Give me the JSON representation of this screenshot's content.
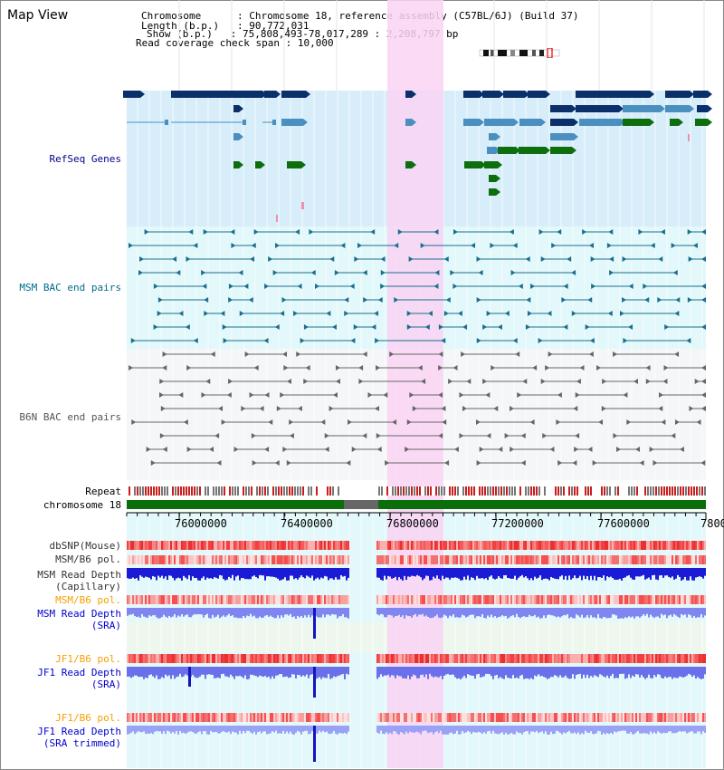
{
  "app": {
    "title": "Map View"
  },
  "header": {
    "chromosome_key": "Chromosome",
    "chromosome_val": "Chromosome 18, reference assembly (C57BL/6J) (Build 37)",
    "length_key": "Length (b.p.)",
    "length_val": "90,772,031",
    "show_key": "Show (b.p.)",
    "show_val": "75,808,493-78,017,289 : 2,208,797 bp",
    "coverage_key": "Read coverage check span",
    "coverage_val": "10,000"
  },
  "tracks": {
    "refseq": {
      "label": "RefSeq Genes",
      "color": "#00008b"
    },
    "msm_bac": {
      "label": "MSM BAC end pairs",
      "color": "#006b8a"
    },
    "b6n_bac": {
      "label": "B6N BAC end pairs",
      "color": "#555555"
    },
    "repeat": {
      "label": "Repeat"
    },
    "chrom": {
      "label": "chromosome 18"
    },
    "dbsnp": {
      "label": "dbSNP(Mouse)"
    },
    "msm_b6_pol": {
      "label": "MSM/B6 pol."
    },
    "msm_depth_cap": {
      "label1": "MSM Read Depth",
      "label2": "(Capillary)"
    },
    "msm_b6_pol2": {
      "label": "MSM/B6 pol.",
      "color": "#f5a000"
    },
    "msm_depth_sra": {
      "label1": "MSM Read Depth",
      "label2": "(SRA)",
      "color": "#0000cd"
    },
    "jf1_b6_pol": {
      "label": "JF1/B6 pol.",
      "color": "#f5a000"
    },
    "jf1_depth_sra": {
      "label1": "JF1 Read Depth",
      "label2": "(SRA)",
      "color": "#0000cd"
    },
    "jf1_b6_pol2": {
      "label": "JF1/B6 pol.",
      "color": "#f5a000"
    },
    "jf1_depth_trim": {
      "label1": "JF1 Read Depth",
      "label2": "(SRA trimmed)",
      "color": "#0000cd"
    }
  },
  "axis": {
    "ticks": [
      "76000000",
      "76400000",
      "76800000",
      "77200000",
      "77600000",
      "7800"
    ]
  },
  "highlight": {
    "color": "#f9d3f3"
  },
  "colors": {
    "refseq_bg": "#d7eefa",
    "bac_bg": "#e3f8fa",
    "b6n_bg": "#f4f6f8",
    "gene_dark": "#0b2f6b",
    "gene_mid": "#4a8fbf",
    "gene_green": "#0e6e0e",
    "chrom_green": "#0a6e0a"
  }
}
